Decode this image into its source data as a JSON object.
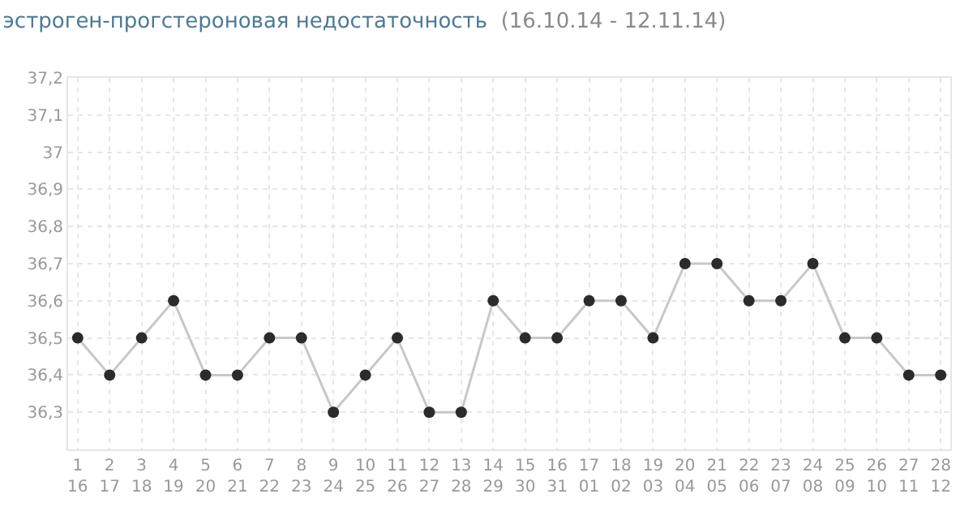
{
  "chart_data": {
    "type": "line",
    "title": "эстроген-прогстероновая недостаточность",
    "subtitle": "(16.10.14 - 12.11.14)",
    "categories": [
      "1\n16",
      "2\n17",
      "3\n18",
      "4\n19",
      "5\n20",
      "6\n21",
      "7\n22",
      "8\n23",
      "9\n24",
      "10\n25",
      "11\n26",
      "12\n27",
      "13\n28",
      "14\n29",
      "15\n30",
      "16\n31",
      "17\n01",
      "18\n02",
      "19\n03",
      "20\n04",
      "21\n05",
      "22\n06",
      "23\n07",
      "24\n08",
      "25\n09",
      "26\n10",
      "27\n11",
      "28\n12"
    ],
    "series": [
      {
        "color": "#c8c8c8",
        "values": [
          36.5,
          36.4,
          36.5,
          36.6,
          36.4,
          36.4,
          36.5,
          36.5,
          36.3,
          36.4,
          36.5,
          36.3,
          36.3,
          36.6,
          36.5,
          36.5,
          36.6,
          36.6,
          36.5,
          36.7,
          36.7,
          36.6,
          36.6,
          36.7,
          36.5,
          36.5,
          36.4,
          36.4
        ]
      }
    ],
    "ylim": [
      36.2,
      37.2
    ],
    "yticks": [
      {
        "value": 36.3,
        "label": "36,3"
      },
      {
        "value": 36.4,
        "label": "36,4"
      },
      {
        "value": 36.5,
        "label": "36,5"
      },
      {
        "value": 36.6,
        "label": "36,6"
      },
      {
        "value": 36.7,
        "label": "36,7"
      },
      {
        "value": 36.8,
        "label": "36,8"
      },
      {
        "value": 36.9,
        "label": "36,9"
      },
      {
        "value": 37,
        "label": "37"
      },
      {
        "value": 37.1,
        "label": "37,1"
      },
      {
        "value": 37.2,
        "label": "37,2"
      }
    ],
    "grid": true,
    "marker": "circle",
    "line_style": "solid"
  }
}
